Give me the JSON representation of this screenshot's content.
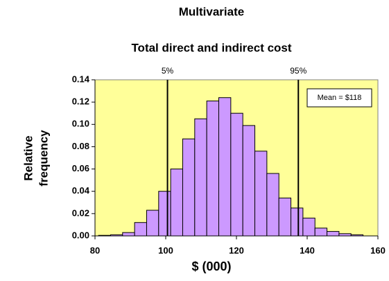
{
  "chart_data": {
    "type": "histogram",
    "title": "Multivariate",
    "subtitle": "Total direct and indirect cost",
    "x_label": "$ (000)",
    "y_label": [
      "Relative",
      "frequency"
    ],
    "bins": [
      81,
      84.4,
      87.8,
      91.2,
      94.6,
      98,
      101.4,
      104.8,
      108.2,
      111.6,
      115,
      118.4,
      121.8,
      125.2,
      128.6,
      132,
      135.4,
      138.8,
      142.2,
      145.6,
      149,
      152.4,
      155.8
    ],
    "values": [
      0.0005,
      0.001,
      0.003,
      0.012,
      0.023,
      0.04,
      0.06,
      0.087,
      0.105,
      0.121,
      0.124,
      0.11,
      0.099,
      0.076,
      0.056,
      0.034,
      0.025,
      0.016,
      0.007,
      0.004,
      0.002,
      0.001
    ],
    "color": "#cc99ff",
    "background": "#ffff99",
    "xlim": [
      80,
      160
    ],
    "xticks": [
      80,
      100,
      120,
      140,
      160
    ],
    "ylim": [
      0,
      0.14
    ],
    "yticks": [
      {
        "value": 0,
        "label": "0.00"
      },
      {
        "value": 0.02,
        "label": "0.02"
      },
      {
        "value": 0.04,
        "label": "0.04"
      },
      {
        "value": 0.06,
        "label": "0.06"
      },
      {
        "value": 0.08,
        "label": "0.08"
      },
      {
        "value": 0.1,
        "label": "0.10"
      },
      {
        "value": 0.12,
        "label": "0.12"
      },
      {
        "value": 0.14,
        "label": "0.14"
      }
    ],
    "reference_lines": [
      {
        "label": "5%",
        "x": 100.5
      },
      {
        "label": "95%",
        "x": 137.5
      }
    ],
    "annotation": "Mean = $118"
  }
}
